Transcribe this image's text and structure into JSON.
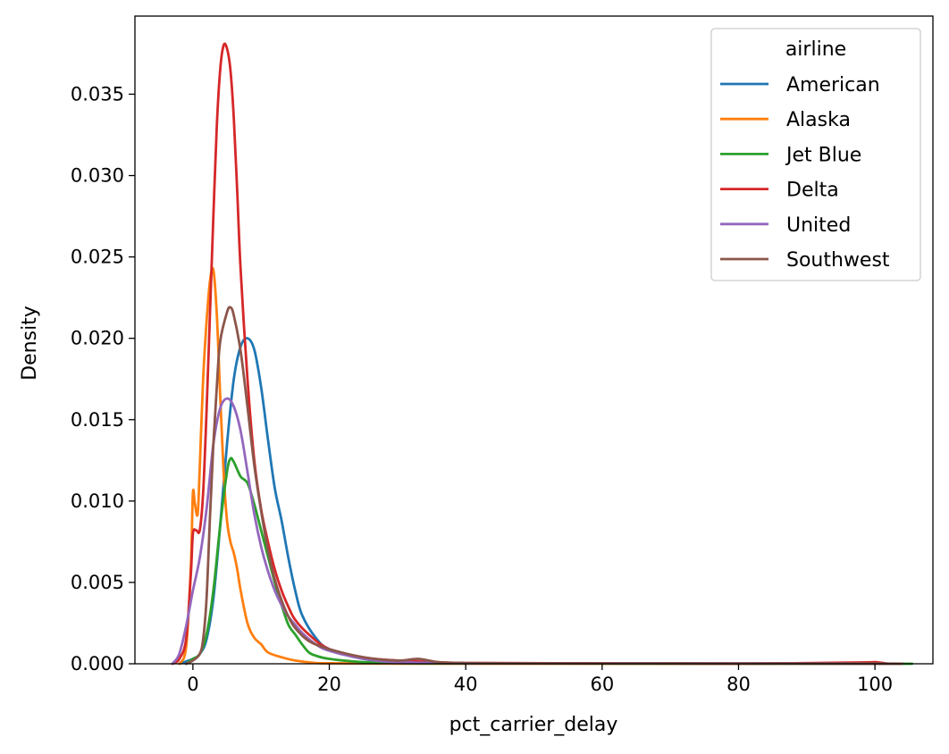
{
  "chart_data": {
    "type": "line",
    "xlabel": "pct_carrier_delay",
    "ylabel": "Density",
    "xlim": [
      -8.5,
      108.5
    ],
    "ylim": [
      0,
      0.0398
    ],
    "xticks": [
      0,
      20,
      40,
      60,
      80,
      100
    ],
    "xtick_labels": [
      "0",
      "20",
      "40",
      "60",
      "80",
      "100"
    ],
    "yticks": [
      0,
      0.005,
      0.01,
      0.015,
      0.02,
      0.025,
      0.03,
      0.035
    ],
    "ytick_labels": [
      "0.000",
      "0.005",
      "0.010",
      "0.015",
      "0.020",
      "0.025",
      "0.030",
      "0.035"
    ],
    "grid": false,
    "legend": {
      "title": "airline",
      "placement": "top-right"
    },
    "series": [
      {
        "name": "American",
        "color": "#1f77b4",
        "x": [
          -2,
          0,
          1,
          2,
          3,
          4,
          5,
          6,
          7,
          8,
          9,
          10,
          11,
          12,
          13,
          14,
          15,
          16,
          18,
          20,
          25,
          30,
          40,
          50,
          60,
          80,
          100,
          103
        ],
        "y": [
          0,
          0.0003,
          0.0006,
          0.0015,
          0.004,
          0.0085,
          0.0135,
          0.0175,
          0.0195,
          0.02,
          0.0193,
          0.017,
          0.0138,
          0.0108,
          0.0088,
          0.0065,
          0.0045,
          0.003,
          0.0016,
          0.0009,
          0.0003,
          0.0001,
          3e-05,
          2e-05,
          1e-05,
          1e-05,
          1e-05,
          0
        ]
      },
      {
        "name": "Alaska",
        "color": "#ff7f0e",
        "x": [
          -2,
          -1,
          -0.3,
          0,
          0.3,
          0.7,
          1,
          1.5,
          2,
          2.5,
          3,
          3.5,
          4,
          4.5,
          5,
          5.5,
          6,
          6.5,
          7,
          8,
          9,
          10,
          11,
          13,
          15,
          18,
          20,
          25,
          30,
          40,
          60,
          80,
          100,
          103
        ],
        "y": [
          0,
          0.001,
          0.006,
          0.0105,
          0.0098,
          0.0092,
          0.012,
          0.0175,
          0.021,
          0.0235,
          0.0242,
          0.0215,
          0.0165,
          0.0118,
          0.0088,
          0.0075,
          0.0068,
          0.0058,
          0.0045,
          0.0025,
          0.0016,
          0.0012,
          0.0007,
          0.0004,
          0.0002,
          5e-05,
          3e-05,
          2e-05,
          1e-05,
          0,
          0,
          0,
          0,
          0
        ]
      },
      {
        "name": "Jet Blue",
        "color": "#2ca02c",
        "x": [
          -1,
          0,
          1,
          2,
          3,
          4,
          5,
          5.5,
          6,
          7,
          8,
          9,
          10,
          11,
          12,
          13,
          14,
          15,
          16,
          17,
          18,
          20,
          25,
          30,
          40,
          100,
          103
        ],
        "y": [
          0,
          0.0003,
          0.0006,
          0.0018,
          0.0045,
          0.0085,
          0.0118,
          0.0126,
          0.0124,
          0.0115,
          0.0111,
          0.0098,
          0.0082,
          0.0066,
          0.005,
          0.0036,
          0.0024,
          0.0018,
          0.0012,
          0.0007,
          0.0005,
          0.0003,
          0.0001,
          5e-05,
          2e-05,
          0,
          0
        ]
      },
      {
        "name": "Delta",
        "color": "#d62728",
        "x": [
          -3,
          -2,
          -1,
          -0.3,
          0,
          0.5,
          1,
          1.5,
          2,
          2.5,
          3,
          3.5,
          4,
          4.5,
          5,
          5.5,
          6,
          6.5,
          7,
          8,
          9,
          10,
          11,
          12,
          13,
          14,
          15,
          17,
          20,
          25,
          30,
          40,
          60,
          80,
          98,
          100,
          102
        ],
        "y": [
          0,
          0.0003,
          0.0015,
          0.0055,
          0.008,
          0.0082,
          0.0082,
          0.0105,
          0.0155,
          0.0215,
          0.0275,
          0.033,
          0.0365,
          0.038,
          0.0378,
          0.0365,
          0.0335,
          0.029,
          0.0242,
          0.0175,
          0.0125,
          0.0095,
          0.0075,
          0.0058,
          0.0045,
          0.0035,
          0.0027,
          0.0018,
          0.0009,
          0.0004,
          0.0002,
          5e-05,
          3e-05,
          1e-05,
          8e-05,
          0.0001,
          0
        ]
      },
      {
        "name": "United",
        "color": "#9467bd",
        "x": [
          -3,
          -2,
          -1,
          0,
          1,
          2,
          3,
          4,
          5,
          6,
          7,
          8,
          9,
          10,
          11,
          12,
          13,
          14,
          15,
          16,
          18,
          20,
          25,
          30,
          40,
          60,
          64,
          100,
          103
        ],
        "y": [
          0,
          0.0006,
          0.0023,
          0.0045,
          0.0065,
          0.0095,
          0.0135,
          0.0157,
          0.0163,
          0.0158,
          0.0143,
          0.0118,
          0.0092,
          0.0072,
          0.0057,
          0.0045,
          0.0036,
          0.0029,
          0.0024,
          0.0019,
          0.0012,
          0.0008,
          0.0003,
          0.0001,
          3e-05,
          2e-05,
          3e-05,
          1e-05,
          0
        ]
      },
      {
        "name": "Southwest",
        "color": "#8c564b",
        "x": [
          -1,
          0,
          1,
          1.5,
          2,
          2.5,
          3,
          3.5,
          4,
          5,
          5.5,
          6,
          7,
          8,
          9,
          10,
          11,
          12,
          13,
          14,
          15,
          17,
          20,
          25,
          30,
          33,
          36,
          40,
          60,
          100,
          103
        ],
        "y": [
          0,
          0.0002,
          0.0006,
          0.0015,
          0.004,
          0.009,
          0.0135,
          0.017,
          0.0198,
          0.0216,
          0.0219,
          0.0214,
          0.0192,
          0.0158,
          0.0122,
          0.0094,
          0.007,
          0.0052,
          0.0039,
          0.0029,
          0.0022,
          0.0014,
          0.0009,
          0.0004,
          0.0002,
          0.0003,
          0.0001,
          5e-05,
          2e-05,
          1e-05,
          0
        ]
      }
    ]
  }
}
